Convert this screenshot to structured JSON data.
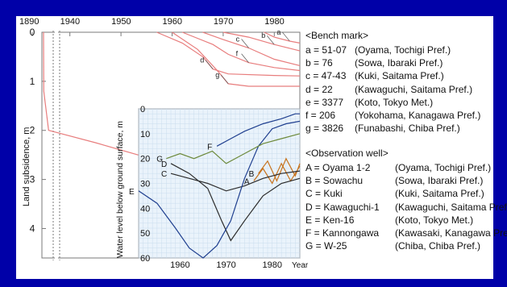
{
  "colors": {
    "slide_background": "#0000a8",
    "panel_background": "#ffffff",
    "inset_background": "#eaf3fb",
    "subsidence_lines": "#e87d7d",
    "inset_line_light": "#6d8a3b",
    "inset_line_dark": "#2b2b2b",
    "inset_line_blue": "#1f3f8f",
    "inset_line_orange": "#c8741e",
    "axis_text": "#111111"
  },
  "chart_data": [
    {
      "type": "line",
      "id": "subsidence",
      "xlabel": "",
      "ylabel": "Land subsidence, m",
      "x_ticks": [
        1890,
        1940,
        1950,
        1960,
        1970,
        1980
      ],
      "y_ticks": [
        0,
        1,
        2,
        3,
        4
      ],
      "xlim": [
        1938,
        1985
      ],
      "ylim": [
        0,
        4.6
      ],
      "axis_break": [
        1890,
        1938
      ],
      "series": [
        {
          "label": "a",
          "points": [
            [
              1978,
              0
            ],
            [
              1980,
              0.1
            ],
            [
              1983,
              0.18
            ],
            [
              1985,
              0.22
            ]
          ]
        },
        {
          "label": "b",
          "points": [
            [
              1970,
              0
            ],
            [
              1975,
              0.1
            ],
            [
              1980,
              0.25
            ],
            [
              1985,
              0.38
            ]
          ]
        },
        {
          "label": "c",
          "points": [
            [
              1966,
              0
            ],
            [
              1970,
              0.15
            ],
            [
              1975,
              0.32
            ],
            [
              1980,
              0.55
            ],
            [
              1985,
              0.68
            ]
          ]
        },
        {
          "label": "d",
          "points": [
            [
              1957,
              0
            ],
            [
              1962,
              0.22
            ],
            [
              1966,
              0.5
            ],
            [
              1968,
              0.75
            ],
            [
              1971,
              0.85
            ],
            [
              1980,
              0.88
            ],
            [
              1985,
              0.89
            ]
          ]
        },
        {
          "label": "e",
          "points": [
            [
              1890,
              0
            ],
            [
              1891,
              1.2
            ],
            [
              1915,
              2.0
            ],
            [
              1945,
              2.25
            ],
            [
              1955,
              2.55
            ],
            [
              1960,
              2.9
            ],
            [
              1965,
              3.6
            ],
            [
              1970,
              4.1
            ],
            [
              1975,
              4.35
            ],
            [
              1985,
              4.4
            ]
          ]
        },
        {
          "label": "f",
          "points": [
            [
              1962,
              0
            ],
            [
              1968,
              0.25
            ],
            [
              1971,
              0.45
            ],
            [
              1975,
              0.62
            ],
            [
              1980,
              0.72
            ],
            [
              1985,
              0.78
            ]
          ]
        },
        {
          "label": "g",
          "points": [
            [
              1960,
              0
            ],
            [
              1965,
              0.35
            ],
            [
              1969,
              0.8
            ],
            [
              1971,
              1.05
            ],
            [
              1975,
              1.1
            ],
            [
              1985,
              1.1
            ]
          ]
        }
      ],
      "series_labels": [
        "a",
        "b",
        "c",
        "d",
        "e",
        "f",
        "g"
      ]
    },
    {
      "type": "line",
      "id": "water-level-inset",
      "xlabel": "Year",
      "ylabel": "Water level below ground surface, m",
      "x_ticks": [
        1960,
        1970,
        1980
      ],
      "y_ticks": [
        0,
        10,
        20,
        30,
        40,
        50,
        60
      ],
      "xlim": [
        1951,
        1986
      ],
      "ylim": [
        0,
        60
      ],
      "series": [
        {
          "label": "A",
          "color": "orange",
          "points": [
            [
              1976,
              29
            ],
            [
              1978,
              24
            ],
            [
              1980,
              30
            ],
            [
              1982,
              22
            ],
            [
              1984,
              29
            ],
            [
              1986,
              23
            ]
          ]
        },
        {
          "label": "B",
          "color": "orange",
          "points": [
            [
              1977,
              26
            ],
            [
              1979,
              21
            ],
            [
              1981,
              29
            ],
            [
              1983,
              20
            ],
            [
              1985,
              27
            ],
            [
              1986,
              22
            ]
          ]
        },
        {
          "label": "C",
          "color": "dark",
          "points": [
            [
              1958,
              26
            ],
            [
              1962,
              28
            ],
            [
              1966,
              30
            ],
            [
              1970,
              33
            ],
            [
              1974,
              31
            ],
            [
              1978,
              28
            ],
            [
              1982,
              26
            ],
            [
              1986,
              25
            ]
          ]
        },
        {
          "label": "D",
          "color": "dark",
          "points": [
            [
              1958,
              22
            ],
            [
              1962,
              26
            ],
            [
              1966,
              32
            ],
            [
              1969,
              45
            ],
            [
              1971,
              53
            ],
            [
              1974,
              45
            ],
            [
              1978,
              35
            ],
            [
              1982,
              30
            ],
            [
              1986,
              28
            ]
          ]
        },
        {
          "label": "E",
          "color": "blue",
          "points": [
            [
              1951,
              33
            ],
            [
              1955,
              38
            ],
            [
              1959,
              48
            ],
            [
              1962,
              56
            ],
            [
              1965,
              60
            ],
            [
              1968,
              55
            ],
            [
              1971,
              45
            ],
            [
              1974,
              28
            ],
            [
              1977,
              15
            ],
            [
              1980,
              8
            ],
            [
              1983,
              6
            ],
            [
              1986,
              5
            ]
          ]
        },
        {
          "label": "F",
          "color": "blue",
          "points": [
            [
              1968,
              15
            ],
            [
              1971,
              12
            ],
            [
              1974,
              9
            ],
            [
              1978,
              6
            ],
            [
              1982,
              4
            ],
            [
              1985,
              2
            ],
            [
              1986,
              2
            ]
          ]
        },
        {
          "label": "G",
          "color": "light",
          "points": [
            [
              1957,
              20
            ],
            [
              1960,
              18
            ],
            [
              1963,
              20
            ],
            [
              1967,
              17
            ],
            [
              1970,
              22
            ],
            [
              1974,
              18
            ],
            [
              1978,
              14
            ],
            [
              1982,
              12
            ],
            [
              1986,
              10
            ]
          ]
        }
      ],
      "series_labels": [
        "A",
        "B",
        "C",
        "D",
        "E",
        "F",
        "G"
      ]
    }
  ],
  "legend": {
    "bench_header": "<Bench mark>",
    "bench": [
      {
        "label": "a = 51-07",
        "location": "(Oyama, Tochigi Pref.)"
      },
      {
        "label": "b = 76",
        "location": "(Sowa, Ibaraki Pref.)"
      },
      {
        "label": "c = 47-43",
        "location": "(Kuki, Saitama Pref.)"
      },
      {
        "label": "d = 22",
        "location": "(Kawaguchi, Saitama Pref.)"
      },
      {
        "label": "e = 3377",
        "location": "(Koto, Tokyo Met.)"
      },
      {
        "label": "f = 206",
        "location": "(Yokohama, Kanagawa Pref.)"
      },
      {
        "label": "g = 3826",
        "location": "(Funabashi, Chiba Pref.)"
      }
    ],
    "well_header": "<Observation well>",
    "wells": [
      {
        "label": "A = Oyama 1-2",
        "location": "(Oyama, Tochigi Pref.)"
      },
      {
        "label": "B = Sowachu",
        "location": "(Sowa, Ibaraki Pref.)"
      },
      {
        "label": "C = Kuki",
        "location": "(Kuki, Saitama Pref.)"
      },
      {
        "label": "D = Kawaguchi-1",
        "location": "(Kawaguchi, Saitama Pref.)"
      },
      {
        "label": "E = Ken-16",
        "location": "(Koto, Tokyo Met.)"
      },
      {
        "label": "F = Kannongawa",
        "location": "(Kawasaki, Kanagawa Pref.)"
      },
      {
        "label": "G = W-25",
        "location": "(Chiba, Chiba Pref.)"
      }
    ]
  }
}
